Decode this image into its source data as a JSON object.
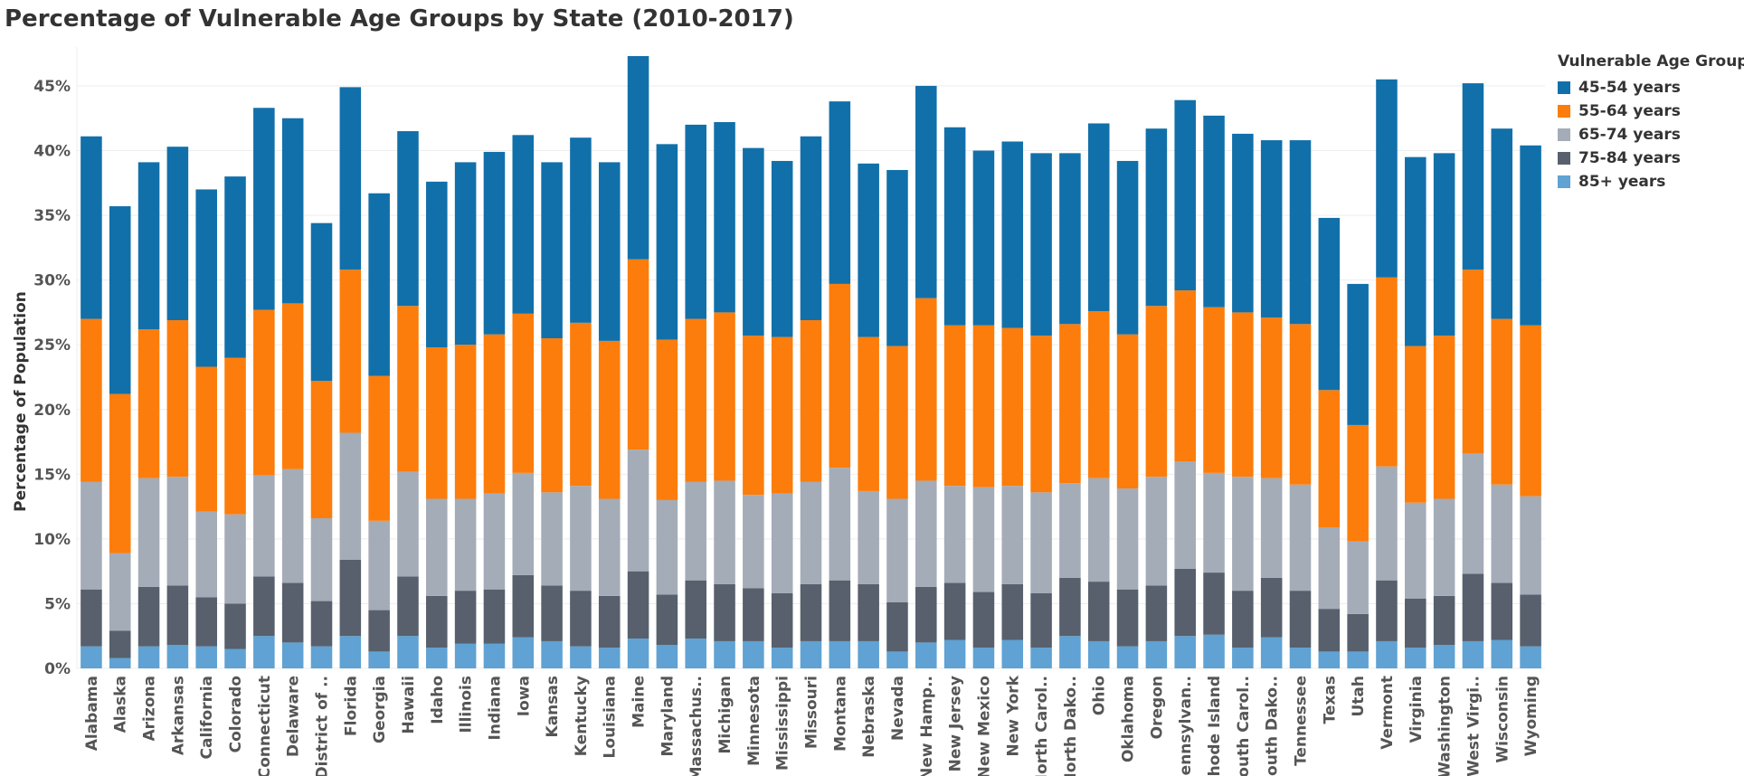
{
  "chart_data": {
    "type": "bar",
    "stacked": true,
    "title": "Percentage of Vulnerable Age Groups by State (2010-2017)",
    "xlabel": "",
    "ylabel": "Percentage of Population",
    "ylim": [
      0,
      48
    ],
    "yticks": [
      0,
      5,
      10,
      15,
      20,
      25,
      30,
      35,
      40,
      45
    ],
    "ytick_labels": [
      "0%",
      "5%",
      "10%",
      "15%",
      "20%",
      "25%",
      "30%",
      "35%",
      "40%",
      "45%"
    ],
    "grid": true,
    "legend": {
      "title": "Vulnerable Age Groups",
      "position": "top-right"
    },
    "categories": [
      "Alabama",
      "Alaska",
      "Arizona",
      "Arkansas",
      "California",
      "Colorado",
      "Connecticut",
      "Delaware",
      "District of Columbia",
      "Florida",
      "Georgia",
      "Hawaii",
      "Idaho",
      "Illinois",
      "Indiana",
      "Iowa",
      "Kansas",
      "Kentucky",
      "Louisiana",
      "Maine",
      "Maryland",
      "Massachusetts",
      "Michigan",
      "Minnesota",
      "Mississippi",
      "Missouri",
      "Montana",
      "Nebraska",
      "Nevada",
      "New Hampshire",
      "New Jersey",
      "New Mexico",
      "New York",
      "North Carolina",
      "North Dakota",
      "Ohio",
      "Oklahoma",
      "Oregon",
      "Pennsylvania",
      "Rhode Island",
      "South Carolina",
      "South Dakota",
      "Tennessee",
      "Texas",
      "Utah",
      "Vermont",
      "Virginia",
      "Washington",
      "West Virginia",
      "Wisconsin",
      "Wyoming"
    ],
    "category_labels": [
      "Alabama",
      "Alaska",
      "Arizona",
      "Arkansas",
      "California",
      "Colorado",
      "Connecticut",
      "Delaware",
      "District of ..",
      "Florida",
      "Georgia",
      "Hawaii",
      "Idaho",
      "Illinois",
      "Indiana",
      "Iowa",
      "Kansas",
      "Kentucky",
      "Louisiana",
      "Maine",
      "Maryland",
      "Massachus..",
      "Michigan",
      "Minnesota",
      "Mississippi",
      "Missouri",
      "Montana",
      "Nebraska",
      "Nevada",
      "New Hamp..",
      "New Jersey",
      "New Mexico",
      "New York",
      "North Carol..",
      "North Dako..",
      "Ohio",
      "Oklahoma",
      "Oregon",
      "Pennsylvan..",
      "Rhode Island",
      "South Carol..",
      "South Dako..",
      "Tennessee",
      "Texas",
      "Utah",
      "Vermont",
      "Virginia",
      "Washington",
      "West Virgi..",
      "Wisconsin",
      "Wyoming"
    ],
    "series": [
      {
        "name": "85+ years",
        "color": "#5fa2d3",
        "values": [
          1.7,
          0.8,
          1.7,
          1.8,
          1.7,
          1.5,
          2.5,
          2.0,
          1.7,
          2.5,
          1.3,
          2.5,
          1.6,
          1.9,
          1.9,
          2.4,
          2.1,
          1.7,
          1.6,
          2.3,
          1.8,
          2.3,
          2.1,
          2.1,
          1.6,
          2.1,
          2.1,
          2.1,
          1.3,
          2.0,
          2.2,
          1.6,
          2.2,
          1.6,
          2.5,
          2.1,
          1.7,
          2.1,
          2.5,
          2.6,
          1.6,
          2.4,
          1.6,
          1.3,
          1.3,
          2.1,
          1.6,
          1.8,
          2.1,
          2.2,
          1.7
        ]
      },
      {
        "name": "75-84 years",
        "color": "#57606c",
        "values": [
          4.4,
          2.1,
          4.6,
          4.6,
          3.8,
          3.5,
          4.6,
          4.6,
          3.5,
          5.9,
          3.2,
          4.6,
          4.0,
          4.1,
          4.2,
          4.8,
          4.3,
          4.3,
          4.0,
          5.2,
          3.9,
          4.5,
          4.4,
          4.1,
          4.2,
          4.4,
          4.7,
          4.4,
          3.8,
          4.3,
          4.4,
          4.3,
          4.3,
          4.2,
          4.5,
          4.6,
          4.4,
          4.3,
          5.2,
          4.8,
          4.4,
          4.6,
          4.4,
          3.3,
          2.9,
          4.7,
          3.8,
          3.8,
          5.2,
          4.4,
          4.0
        ]
      },
      {
        "name": "65-74 years",
        "color": "#a4acb8",
        "values": [
          8.3,
          6.0,
          8.4,
          8.4,
          6.6,
          6.9,
          7.8,
          8.8,
          6.4,
          9.8,
          6.9,
          8.1,
          7.5,
          7.1,
          7.4,
          7.9,
          7.2,
          8.1,
          7.5,
          9.4,
          7.3,
          7.6,
          8.0,
          7.2,
          7.7,
          7.9,
          8.7,
          7.2,
          8.0,
          8.2,
          7.5,
          8.1,
          7.6,
          7.8,
          7.3,
          8.0,
          7.8,
          8.4,
          8.3,
          7.7,
          8.8,
          7.7,
          8.2,
          6.3,
          5.6,
          8.8,
          7.4,
          7.5,
          9.3,
          7.6,
          7.6
        ]
      },
      {
        "name": "55-64 years",
        "color": "#fc7d0b",
        "values": [
          12.6,
          12.3,
          11.5,
          12.1,
          11.2,
          12.1,
          12.8,
          12.8,
          10.6,
          12.6,
          11.2,
          12.8,
          11.7,
          11.9,
          12.3,
          12.3,
          11.9,
          12.6,
          12.2,
          14.7,
          12.4,
          12.6,
          13.0,
          12.3,
          12.1,
          12.5,
          14.2,
          11.9,
          11.8,
          14.1,
          12.4,
          12.5,
          12.2,
          12.1,
          12.3,
          12.9,
          11.9,
          13.2,
          13.2,
          12.8,
          12.7,
          12.4,
          12.4,
          10.6,
          9.0,
          14.6,
          12.1,
          12.6,
          14.2,
          12.8,
          13.2
        ]
      },
      {
        "name": "45-54 years",
        "color": "#1170aa",
        "values": [
          14.1,
          14.5,
          12.9,
          13.4,
          13.7,
          14.0,
          15.6,
          14.3,
          12.2,
          14.1,
          14.1,
          13.5,
          12.8,
          14.1,
          14.1,
          13.8,
          13.6,
          14.3,
          13.8,
          15.7,
          15.1,
          15.0,
          14.7,
          14.5,
          13.6,
          14.2,
          14.1,
          13.4,
          13.6,
          16.4,
          15.3,
          13.5,
          14.4,
          14.1,
          13.2,
          14.5,
          13.4,
          13.7,
          14.7,
          14.8,
          13.8,
          13.7,
          14.2,
          13.3,
          10.9,
          15.3,
          14.6,
          14.1,
          14.4,
          14.7,
          13.9
        ]
      }
    ]
  }
}
